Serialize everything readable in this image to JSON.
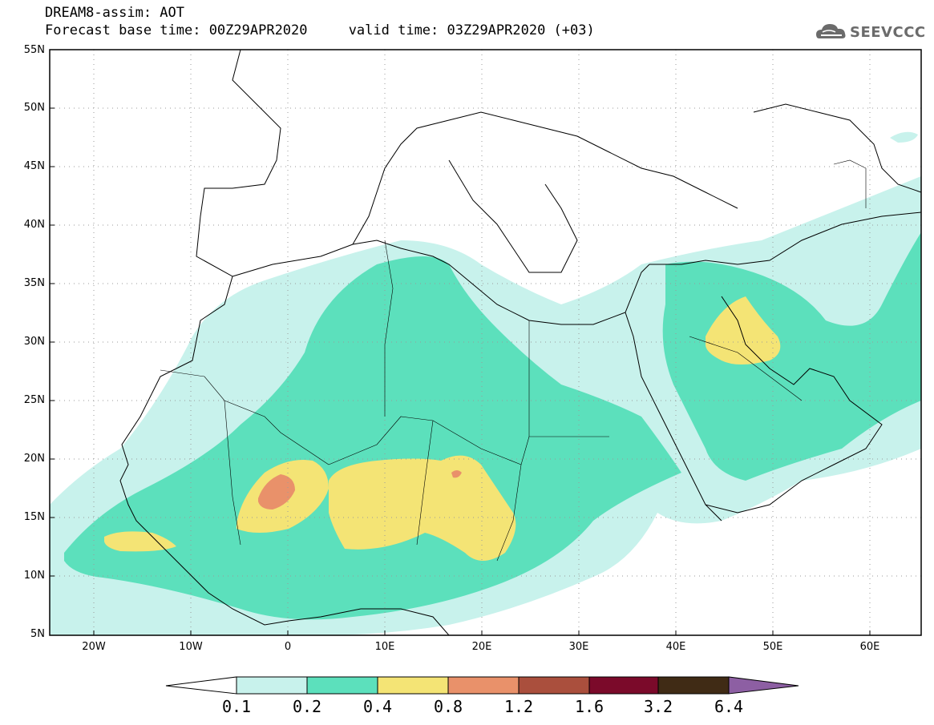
{
  "header": {
    "title_line1": "DREAM8-assim: AOT",
    "title_line2": "Forecast base time: 00Z29APR2020     valid time: 03Z29APR2020 (+03)",
    "logo_text": "SEEVCCC"
  },
  "map": {
    "lon_range": [
      -25,
      65
    ],
    "lat_range": [
      5,
      55
    ],
    "lat_ticks": [
      "55N",
      "50N",
      "45N",
      "40N",
      "35N",
      "30N",
      "25N",
      "20N",
      "15N",
      "10N",
      "5N"
    ],
    "lon_ticks": [
      "20W",
      "10W",
      "0",
      "10E",
      "20E",
      "30E",
      "40E",
      "50E",
      "60E"
    ],
    "grid": true
  },
  "colorbar": {
    "labels": [
      "0.1",
      "0.2",
      "0.4",
      "0.8",
      "1.2",
      "1.6",
      "3.2",
      "6.4"
    ],
    "colors": [
      "#c8f2ec",
      "#5ce0bc",
      "#f4e475",
      "#e9916a",
      "#aa4f3d",
      "#7b0a2a",
      "#402b15",
      "#8d5fa3"
    ]
  }
}
